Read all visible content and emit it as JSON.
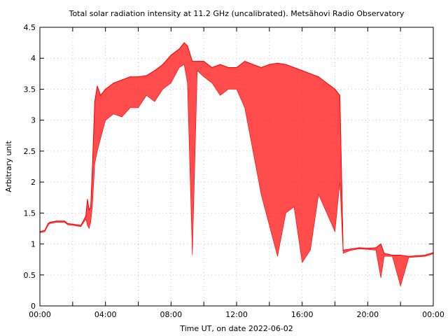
{
  "chart_data": {
    "type": "line",
    "title": "Total solar radiation intensity at 11.2 GHz (uncalibrated). Metsähovi Radio Observatory",
    "xlabel": "Time UT, on date 2022-06-02",
    "ylabel": "Arbitrary unit",
    "xlim": [
      "00:00",
      "24:00"
    ],
    "ylim": [
      0,
      4.5
    ],
    "x_ticks": [
      "00:00",
      "04:00",
      "08:00",
      "12:00",
      "16:00",
      "20:00",
      "00:00"
    ],
    "y_ticks": [
      "0",
      "0.5",
      "1",
      "1.5",
      "2",
      "2.5",
      "3",
      "3.5",
      "4",
      "4.5"
    ],
    "grid": true,
    "color": "#ff0000",
    "series": [
      {
        "x_hours": [
          0,
          0.3,
          0.5,
          0.6,
          1.0,
          1.5,
          1.7,
          2.0,
          2.5,
          2.8,
          2.9,
          3.0,
          3.1,
          3.2,
          3.35,
          3.5,
          3.7,
          4.0,
          4.5,
          5.0,
          5.5,
          6.0,
          6.5,
          7.0,
          7.5,
          8.0,
          8.5,
          8.8,
          9.0,
          9.3,
          9.6,
          10.0,
          10.5,
          11.0,
          11.5,
          12.0,
          12.5,
          13.0,
          13.5,
          14.0,
          14.5,
          15.0,
          15.5,
          16.0,
          16.5,
          17.0,
          17.5,
          18.0,
          18.3,
          18.5,
          19.0,
          19.5,
          20.0,
          20.5,
          20.8,
          21.0,
          21.5,
          22.0,
          22.5,
          23.0,
          23.5,
          24.0
        ],
        "y_upper": [
          1.2,
          1.22,
          1.33,
          1.35,
          1.37,
          1.37,
          1.33,
          1.32,
          1.3,
          1.45,
          1.72,
          1.55,
          1.6,
          2.2,
          3.3,
          3.55,
          3.4,
          3.5,
          3.6,
          3.65,
          3.7,
          3.7,
          3.72,
          3.8,
          3.9,
          4.05,
          4.15,
          4.25,
          4.2,
          3.95,
          3.95,
          3.95,
          3.85,
          3.9,
          3.85,
          3.85,
          3.95,
          3.9,
          3.85,
          3.9,
          3.92,
          3.9,
          3.85,
          3.8,
          3.75,
          3.7,
          3.6,
          3.5,
          3.4,
          0.9,
          0.92,
          0.94,
          0.93,
          0.94,
          1.0,
          0.85,
          0.82,
          0.82,
          0.8,
          0.81,
          0.82,
          0.86
        ],
        "y_lower": [
          1.18,
          1.2,
          1.3,
          1.33,
          1.35,
          1.35,
          1.31,
          1.3,
          1.28,
          1.4,
          1.3,
          1.25,
          1.35,
          1.6,
          2.3,
          2.5,
          2.7,
          3.0,
          3.1,
          3.05,
          3.2,
          3.2,
          3.4,
          3.3,
          3.5,
          3.6,
          3.85,
          3.9,
          3.6,
          0.82,
          3.8,
          3.7,
          3.6,
          3.4,
          3.5,
          3.5,
          3.2,
          2.5,
          1.8,
          1.3,
          0.8,
          1.5,
          1.6,
          0.7,
          0.9,
          1.8,
          1.5,
          1.2,
          2.0,
          0.85,
          0.9,
          0.92,
          0.91,
          0.9,
          0.45,
          0.8,
          0.8,
          0.32,
          0.78,
          0.79,
          0.8,
          0.84
        ]
      }
    ]
  }
}
